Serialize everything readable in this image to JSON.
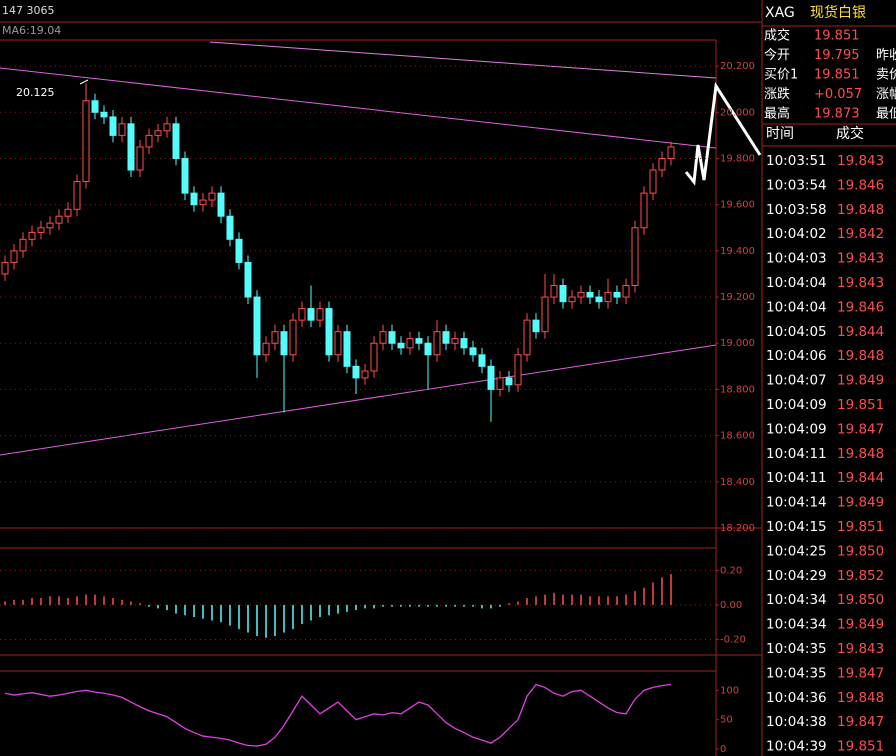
{
  "header": {
    "volume": "147 3065",
    "ma": "MA6:19.04"
  },
  "chart_data": [
    {
      "type": "candlestick",
      "up_color": "#ff4d4d",
      "down_color": "#54fcfc",
      "grid": true,
      "ylim": [
        18.2,
        20.3
      ],
      "yticks": [
        {
          "value": 18.2,
          "label": "18.200"
        },
        {
          "value": 18.4,
          "label": "18.400"
        },
        {
          "value": 18.6,
          "label": "18.600"
        },
        {
          "value": 18.8,
          "label": "18.800"
        },
        {
          "value": 19.0,
          "label": "19.000"
        },
        {
          "value": 19.2,
          "label": "19.200"
        },
        {
          "value": 19.4,
          "label": "19.400"
        },
        {
          "value": 19.6,
          "label": "19.600"
        },
        {
          "value": 19.8,
          "label": "19.800"
        },
        {
          "value": 20.0,
          "label": "20.000"
        },
        {
          "value": 20.2,
          "label": "20.200"
        }
      ],
      "annotations": [
        "20.125"
      ],
      "candles": [
        [
          19.3,
          19.38,
          19.27,
          19.35
        ],
        [
          19.35,
          19.43,
          19.32,
          19.4
        ],
        [
          19.4,
          19.48,
          19.37,
          19.45
        ],
        [
          19.45,
          19.51,
          19.42,
          19.48
        ],
        [
          19.48,
          19.53,
          19.45,
          19.5
        ],
        [
          19.5,
          19.55,
          19.47,
          19.52
        ],
        [
          19.52,
          19.58,
          19.49,
          19.55
        ],
        [
          19.55,
          19.61,
          19.52,
          19.58
        ],
        [
          19.58,
          19.73,
          19.55,
          19.7
        ],
        [
          19.7,
          20.125,
          19.67,
          20.05
        ],
        [
          20.05,
          20.08,
          19.97,
          20.0
        ],
        [
          20.0,
          20.03,
          19.95,
          19.98
        ],
        [
          19.98,
          20.01,
          19.87,
          19.9
        ],
        [
          19.9,
          19.98,
          19.87,
          19.95
        ],
        [
          19.95,
          19.98,
          19.72,
          19.75
        ],
        [
          19.75,
          19.88,
          19.72,
          19.85
        ],
        [
          19.85,
          19.93,
          19.82,
          19.9
        ],
        [
          19.9,
          19.95,
          19.87,
          19.92
        ],
        [
          19.92,
          19.98,
          19.89,
          19.95
        ],
        [
          19.95,
          19.98,
          19.77,
          19.8
        ],
        [
          19.8,
          19.83,
          19.62,
          19.65
        ],
        [
          19.65,
          19.68,
          19.57,
          19.6
        ],
        [
          19.6,
          19.65,
          19.57,
          19.62
        ],
        [
          19.62,
          19.68,
          19.59,
          19.65
        ],
        [
          19.65,
          19.68,
          19.52,
          19.55
        ],
        [
          19.55,
          19.58,
          19.42,
          19.45
        ],
        [
          19.45,
          19.48,
          19.32,
          19.35
        ],
        [
          19.35,
          19.38,
          19.17,
          19.2
        ],
        [
          19.2,
          19.23,
          18.85,
          18.95
        ],
        [
          18.95,
          19.03,
          18.92,
          19.0
        ],
        [
          19.0,
          19.08,
          18.97,
          19.05
        ],
        [
          19.05,
          19.08,
          18.7,
          18.95
        ],
        [
          18.95,
          19.13,
          18.92,
          19.1
        ],
        [
          19.1,
          19.18,
          19.07,
          19.15
        ],
        [
          19.15,
          19.25,
          19.07,
          19.1
        ],
        [
          19.1,
          19.18,
          19.07,
          19.15
        ],
        [
          19.15,
          19.18,
          18.92,
          18.95
        ],
        [
          18.95,
          19.08,
          18.92,
          19.05
        ],
        [
          19.05,
          19.08,
          18.87,
          18.9
        ],
        [
          18.9,
          18.93,
          18.78,
          18.85
        ],
        [
          18.85,
          18.91,
          18.82,
          18.88
        ],
        [
          18.88,
          19.03,
          18.85,
          19.0
        ],
        [
          19.0,
          19.08,
          18.97,
          19.05
        ],
        [
          19.05,
          19.08,
          18.97,
          19.0
        ],
        [
          19.0,
          19.03,
          18.95,
          18.98
        ],
        [
          18.98,
          19.05,
          18.95,
          19.02
        ],
        [
          19.02,
          19.05,
          18.97,
          19.0
        ],
        [
          19.0,
          19.03,
          18.8,
          18.95
        ],
        [
          18.95,
          19.1,
          18.92,
          19.05
        ],
        [
          19.05,
          19.08,
          18.97,
          19.0
        ],
        [
          19.0,
          19.05,
          18.97,
          19.02
        ],
        [
          19.02,
          19.05,
          18.95,
          18.98
        ],
        [
          18.98,
          19.01,
          18.92,
          18.95
        ],
        [
          18.95,
          18.98,
          18.87,
          18.9
        ],
        [
          18.9,
          18.93,
          18.66,
          18.8
        ],
        [
          18.8,
          18.88,
          18.77,
          18.85
        ],
        [
          18.85,
          18.88,
          18.79,
          18.82
        ],
        [
          18.82,
          18.98,
          18.79,
          18.95
        ],
        [
          18.95,
          19.13,
          18.92,
          19.1
        ],
        [
          19.1,
          19.13,
          19.02,
          19.05
        ],
        [
          19.05,
          19.3,
          19.02,
          19.2
        ],
        [
          19.2,
          19.3,
          19.17,
          19.25
        ],
        [
          19.25,
          19.28,
          19.15,
          19.18
        ],
        [
          19.18,
          19.23,
          19.15,
          19.2
        ],
        [
          19.2,
          19.25,
          19.17,
          19.22
        ],
        [
          19.22,
          19.25,
          19.17,
          19.2
        ],
        [
          19.2,
          19.23,
          19.15,
          19.18
        ],
        [
          19.18,
          19.28,
          19.15,
          19.22
        ],
        [
          19.22,
          19.25,
          19.17,
          19.2
        ],
        [
          19.2,
          19.28,
          19.17,
          19.25
        ],
        [
          19.25,
          19.53,
          19.22,
          19.5
        ],
        [
          19.5,
          19.68,
          19.47,
          19.65
        ],
        [
          19.65,
          19.78,
          19.62,
          19.75
        ],
        [
          19.75,
          19.83,
          19.72,
          19.8
        ],
        [
          19.8,
          19.873,
          19.77,
          19.85
        ]
      ]
    },
    {
      "type": "bar",
      "up_color": "#ff4d4d",
      "down_color": "#54fcfc",
      "ylim": [
        -0.29,
        0.33
      ],
      "yticks": [
        {
          "value": 0.2,
          "label": "0.20"
        },
        {
          "value": 0,
          "label": "0.00"
        },
        {
          "value": -0.2,
          "label": "-0.20"
        }
      ],
      "values": [
        0.02,
        0.03,
        0.03,
        0.04,
        0.04,
        0.05,
        0.05,
        0.04,
        0.05,
        0.06,
        0.06,
        0.05,
        0.04,
        0.03,
        0.02,
        0.01,
        -0.01,
        -0.02,
        -0.03,
        -0.05,
        -0.06,
        -0.07,
        -0.08,
        -0.09,
        -0.1,
        -0.12,
        -0.14,
        -0.16,
        -0.18,
        -0.19,
        -0.18,
        -0.16,
        -0.14,
        -0.11,
        -0.09,
        -0.07,
        -0.06,
        -0.05,
        -0.04,
        -0.03,
        -0.02,
        -0.02,
        -0.01,
        -0.01,
        -0.01,
        -0.01,
        -0.01,
        -0.01,
        -0.01,
        -0.01,
        -0.01,
        -0.01,
        -0.01,
        -0.02,
        -0.02,
        -0.01,
        0.01,
        0.02,
        0.04,
        0.05,
        0.06,
        0.07,
        0.06,
        0.06,
        0.06,
        0.05,
        0.05,
        0.05,
        0.05,
        0.06,
        0.08,
        0.1,
        0.13,
        0.16,
        0.18
      ]
    },
    {
      "type": "line",
      "ylim": [
        -12,
        133
      ],
      "yticks": [
        0,
        50,
        100
      ],
      "series": [
        {
          "color": "#e040e0",
          "values": [
            95,
            92,
            94,
            96,
            93,
            90,
            92,
            95,
            98,
            100,
            97,
            95,
            92,
            88,
            80,
            72,
            65,
            60,
            55,
            45,
            35,
            28,
            22,
            20,
            18,
            15,
            10,
            6,
            5,
            8,
            20,
            40,
            65,
            90,
            75,
            60,
            70,
            80,
            65,
            50,
            55,
            60,
            58,
            62,
            60,
            70,
            80,
            75,
            60,
            45,
            35,
            28,
            20,
            15,
            10,
            20,
            35,
            50,
            90,
            110,
            105,
            95,
            90,
            98,
            100,
            90,
            80,
            70,
            62,
            60,
            85,
            100,
            105,
            108,
            110
          ]
        }
      ]
    }
  ],
  "quote": {
    "symbol": "XAG",
    "name": "现货白银",
    "rows": [
      [
        "成交",
        "19.851",
        ""
      ],
      [
        "今开",
        "19.795",
        "昨收"
      ],
      [
        "买价1",
        "19.851",
        "卖价"
      ],
      [
        "涨跌",
        "+0.057",
        "涨幅"
      ],
      [
        "最高",
        "19.873",
        "最低"
      ]
    ]
  },
  "trades": {
    "header": [
      "时间",
      "成交"
    ],
    "rows": [
      [
        "10:03:51",
        "19.843"
      ],
      [
        "10:03:54",
        "19.846"
      ],
      [
        "10:03:58",
        "19.848"
      ],
      [
        "10:04:02",
        "19.842"
      ],
      [
        "10:04:03",
        "19.843"
      ],
      [
        "10:04:04",
        "19.843"
      ],
      [
        "10:04:04",
        "19.846"
      ],
      [
        "10:04:05",
        "19.844"
      ],
      [
        "10:04:06",
        "19.848"
      ],
      [
        "10:04:07",
        "19.849"
      ],
      [
        "10:04:09",
        "19.851"
      ],
      [
        "10:04:09",
        "19.847"
      ],
      [
        "10:04:11",
        "19.848"
      ],
      [
        "10:04:11",
        "19.844"
      ],
      [
        "10:04:14",
        "19.849"
      ],
      [
        "10:04:15",
        "19.851"
      ],
      [
        "10:04:25",
        "19.850"
      ],
      [
        "10:04:29",
        "19.852"
      ],
      [
        "10:04:34",
        "19.850"
      ],
      [
        "10:04:34",
        "19.849"
      ],
      [
        "10:04:35",
        "19.843"
      ],
      [
        "10:04:35",
        "19.847"
      ],
      [
        "10:04:36",
        "19.848"
      ],
      [
        "10:04:38",
        "19.847"
      ],
      [
        "10:04:39",
        "19.851"
      ]
    ]
  }
}
